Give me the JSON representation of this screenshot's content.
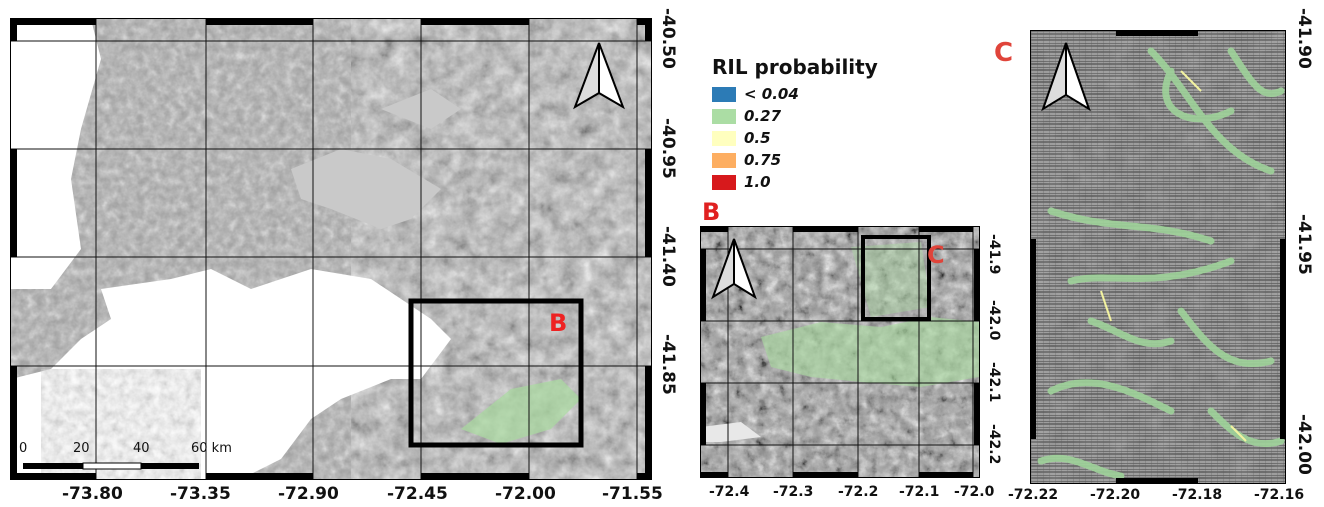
{
  "panelA": {
    "x_ticks": [
      "-73.80",
      "-73.35",
      "-72.90",
      "-72.45",
      "-72.00",
      "-71.55"
    ],
    "y_ticks": [
      "-40.50",
      "-40.95",
      "-41.40",
      "-41.85"
    ],
    "inset_label": "B",
    "scale_bar": {
      "labels": [
        "0",
        "20",
        "40",
        "60 km"
      ]
    }
  },
  "panelB": {
    "letter": "B",
    "x_ticks": [
      "-72.4",
      "-72.3",
      "-72.2",
      "-72.1",
      "-72.0"
    ],
    "y_ticks": [
      "-41.9",
      "-42.0",
      "-42.1",
      "-42.2"
    ],
    "inset_label": "C"
  },
  "panelC": {
    "letter": "C",
    "x_ticks": [
      "-72.22",
      "-72.20",
      "-72.18",
      "-72.16"
    ],
    "y_ticks": [
      "-41.90",
      "-41.95",
      "-42.00"
    ]
  },
  "legend": {
    "title": "RIL probability",
    "items": [
      {
        "label": "< 0.04",
        "color": "#2c7bb6"
      },
      {
        "label": "0.27",
        "color": "#abdda4"
      },
      {
        "label": "0.5",
        "color": "#ffffbf"
      },
      {
        "label": "0.75",
        "color": "#fdae61"
      },
      {
        "label": "1.0",
        "color": "#d7191c"
      }
    ]
  },
  "icons": {
    "north_arrow": "north-arrow-icon"
  }
}
